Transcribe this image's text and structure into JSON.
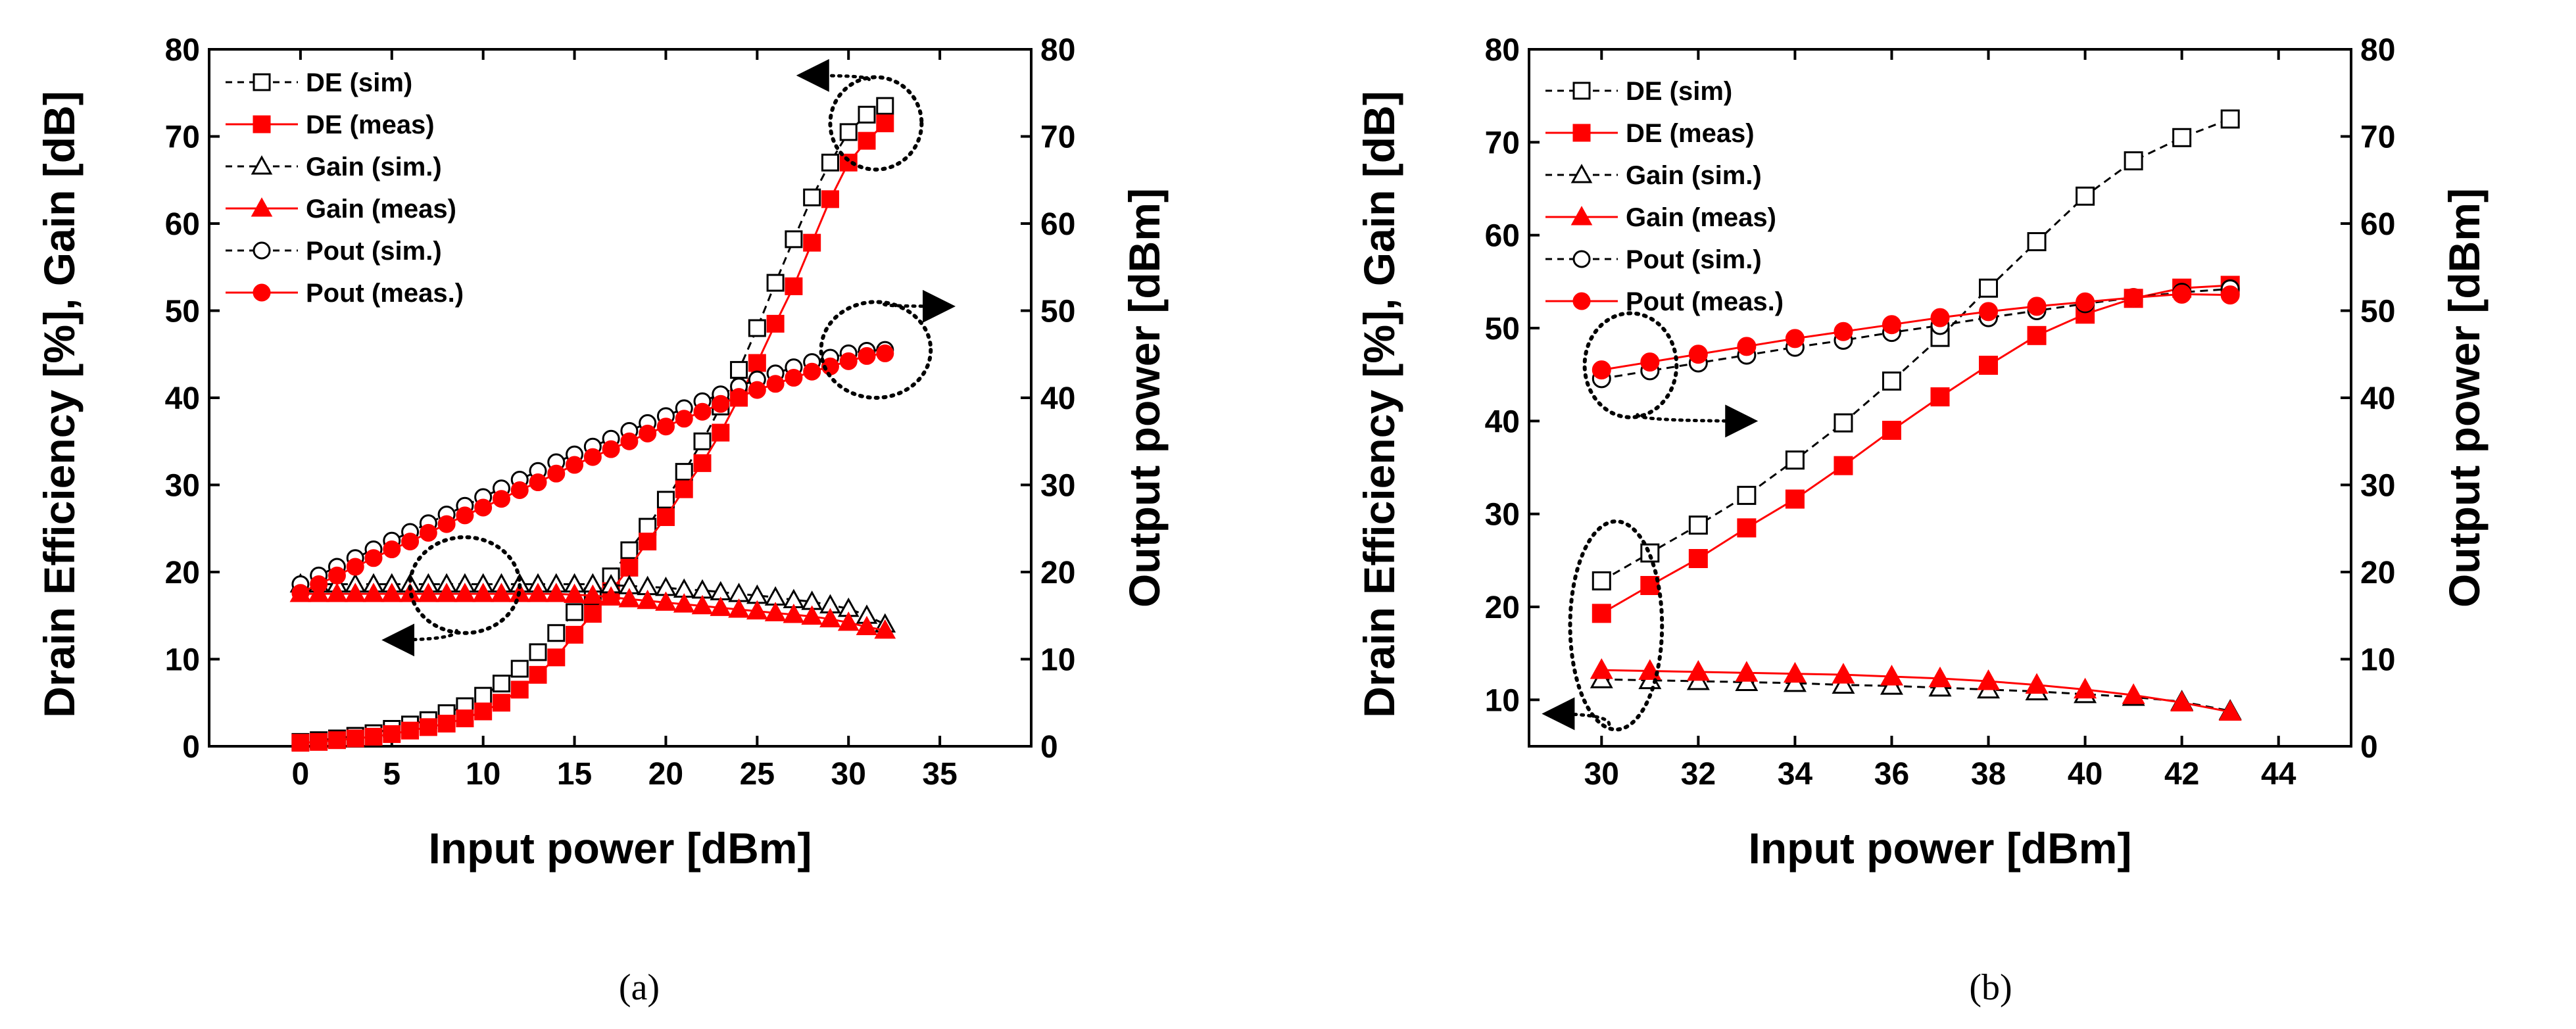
{
  "chart_data": [
    {
      "type": "line",
      "panel": "a",
      "caption": "(a)",
      "xlabel": "Input power [dBm]",
      "ylabel": "Drain Efficiency [%], Gain [dB]",
      "y2label": "Output power [dBm]",
      "xlim": [
        -5,
        40
      ],
      "ylim": [
        0,
        80
      ],
      "y2lim": [
        0,
        80
      ],
      "xticks": [
        0,
        5,
        10,
        15,
        20,
        25,
        30,
        35
      ],
      "yticks": [
        0,
        10,
        20,
        30,
        40,
        50,
        60,
        70,
        80
      ],
      "y2ticks": [
        0,
        10,
        20,
        30,
        40,
        50,
        60,
        70,
        80
      ],
      "legend_position": "top-left",
      "series": [
        {
          "name": "DE (sim)",
          "axis": "left",
          "marker": "square",
          "filled": false,
          "color": "#000000",
          "dashed": true,
          "x": [
            0,
            1,
            2,
            3,
            4,
            5,
            6,
            7,
            8,
            9,
            10,
            11,
            12,
            13,
            14,
            15,
            16,
            17,
            18,
            19,
            20,
            21,
            22,
            23,
            24,
            25,
            26,
            27,
            28,
            29,
            30,
            31,
            32
          ],
          "y": [
            0.5,
            0.7,
            0.9,
            1.2,
            1.5,
            2.0,
            2.5,
            3.0,
            3.8,
            4.6,
            5.8,
            7.2,
            8.9,
            10.8,
            13.0,
            15.4,
            17.2,
            19.5,
            22.5,
            25.2,
            28.3,
            31.5,
            35.0,
            39.0,
            43.2,
            48.0,
            53.2,
            58.2,
            63.0,
            67.0,
            70.5,
            72.5,
            73.5
          ]
        },
        {
          "name": "DE (meas)",
          "axis": "left",
          "marker": "square",
          "filled": true,
          "color": "#ff0000",
          "dashed": false,
          "x": [
            0,
            1,
            2,
            3,
            4,
            5,
            6,
            7,
            8,
            9,
            10,
            11,
            12,
            13,
            14,
            15,
            16,
            17,
            18,
            19,
            20,
            21,
            22,
            23,
            24,
            25,
            26,
            27,
            28,
            29,
            30,
            31,
            32
          ],
          "y": [
            0.4,
            0.5,
            0.7,
            0.9,
            1.1,
            1.4,
            1.8,
            2.2,
            2.6,
            3.2,
            4.0,
            5.0,
            6.5,
            8.2,
            10.2,
            12.8,
            15.2,
            17.8,
            20.5,
            23.5,
            26.3,
            29.5,
            32.5,
            36.0,
            40.0,
            44.0,
            48.5,
            52.8,
            57.8,
            62.8,
            67.0,
            69.5,
            71.5
          ]
        },
        {
          "name": "Gain (sim.)",
          "axis": "left",
          "marker": "triangle",
          "filled": false,
          "color": "#000000",
          "dashed": true,
          "x": [
            0,
            1,
            2,
            3,
            4,
            5,
            6,
            7,
            8,
            9,
            10,
            11,
            12,
            13,
            14,
            15,
            16,
            17,
            18,
            19,
            20,
            21,
            22,
            23,
            24,
            25,
            26,
            27,
            28,
            29,
            30,
            31,
            32
          ],
          "y": [
            18.6,
            18.6,
            18.6,
            18.6,
            18.6,
            18.6,
            18.6,
            18.6,
            18.6,
            18.6,
            18.6,
            18.6,
            18.6,
            18.6,
            18.6,
            18.6,
            18.6,
            18.5,
            18.4,
            18.3,
            18.2,
            18.0,
            17.9,
            17.7,
            17.5,
            17.3,
            17.1,
            16.8,
            16.6,
            16.2,
            15.8,
            15.0,
            14.0
          ]
        },
        {
          "name": "Gain (meas)",
          "axis": "left",
          "marker": "triangle",
          "filled": true,
          "color": "#ff0000",
          "dashed": false,
          "x": [
            0,
            1,
            2,
            3,
            4,
            5,
            6,
            7,
            8,
            9,
            10,
            11,
            12,
            13,
            14,
            15,
            16,
            17,
            18,
            19,
            20,
            21,
            22,
            23,
            24,
            25,
            26,
            27,
            28,
            29,
            30,
            31,
            32
          ],
          "y": [
            17.5,
            17.5,
            17.5,
            17.5,
            17.5,
            17.5,
            17.5,
            17.5,
            17.5,
            17.5,
            17.5,
            17.5,
            17.5,
            17.5,
            17.5,
            17.4,
            17.3,
            17.1,
            16.9,
            16.7,
            16.5,
            16.3,
            16.1,
            15.9,
            15.7,
            15.5,
            15.3,
            15.1,
            14.9,
            14.6,
            14.2,
            13.7,
            13.3
          ]
        },
        {
          "name": "Pout (sim.)",
          "axis": "right",
          "marker": "circle",
          "filled": false,
          "color": "#000000",
          "dashed": true,
          "x": [
            0,
            1,
            2,
            3,
            4,
            5,
            6,
            7,
            8,
            9,
            10,
            11,
            12,
            13,
            14,
            15,
            16,
            17,
            18,
            19,
            20,
            21,
            22,
            23,
            24,
            25,
            26,
            27,
            28,
            29,
            30,
            31,
            32
          ],
          "y": [
            18.6,
            19.6,
            20.6,
            21.6,
            22.6,
            23.6,
            24.6,
            25.6,
            26.6,
            27.6,
            28.6,
            29.6,
            30.6,
            31.6,
            32.6,
            33.5,
            34.4,
            35.3,
            36.2,
            37.1,
            37.9,
            38.8,
            39.6,
            40.4,
            41.3,
            42.1,
            42.8,
            43.5,
            44.1,
            44.6,
            45.1,
            45.4,
            45.5
          ]
        },
        {
          "name": "Pout (meas.)",
          "axis": "right",
          "marker": "circle",
          "filled": true,
          "color": "#ff0000",
          "dashed": false,
          "x": [
            0,
            1,
            2,
            3,
            4,
            5,
            6,
            7,
            8,
            9,
            10,
            11,
            12,
            13,
            14,
            15,
            16,
            17,
            18,
            19,
            20,
            21,
            22,
            23,
            24,
            25,
            26,
            27,
            28,
            29,
            30,
            31,
            32
          ],
          "y": [
            17.6,
            18.6,
            19.6,
            20.6,
            21.6,
            22.6,
            23.5,
            24.5,
            25.5,
            26.5,
            27.4,
            28.4,
            29.4,
            30.3,
            31.3,
            32.3,
            33.2,
            34.1,
            35.0,
            35.9,
            36.7,
            37.6,
            38.4,
            39.3,
            40.1,
            40.9,
            41.6,
            42.3,
            43.0,
            43.6,
            44.2,
            44.8,
            45.1
          ]
        }
      ],
      "annotations": [
        {
          "kind": "ellipse",
          "cx": 31.5,
          "cy": 71.5,
          "rx": 2.5,
          "ry": 5.3,
          "arrow_to_x": 27.5,
          "arrow_to_y": 77,
          "direction": "left"
        },
        {
          "kind": "ellipse",
          "cx": 31.5,
          "cy": 45.5,
          "rx": 3.0,
          "ry": 5.5,
          "arrow_to_x": 35.5,
          "arrow_to_y": 50.5,
          "direction": "right"
        },
        {
          "kind": "ellipse",
          "cx": 9.0,
          "cy": 18.5,
          "rx": 3.0,
          "ry": 5.5,
          "arrow_to_x": 4.8,
          "arrow_to_y": 12.2,
          "direction": "left"
        }
      ]
    },
    {
      "type": "line",
      "panel": "b",
      "caption": "(b)",
      "xlabel": "Input power [dBm]",
      "ylabel": "Drain Efficiency [%], Gain [dB]",
      "y2label": "Output power [dBm]",
      "xlim": [
        28.5,
        45.5
      ],
      "ylim": [
        5,
        80
      ],
      "y2lim": [
        0,
        80
      ],
      "xticks": [
        30,
        32,
        34,
        36,
        38,
        40,
        42,
        44
      ],
      "yticks": [
        10,
        20,
        30,
        40,
        50,
        60,
        70,
        80
      ],
      "y2ticks": [
        0,
        10,
        20,
        30,
        40,
        50,
        60,
        70,
        80
      ],
      "legend_position": "top-left",
      "series": [
        {
          "name": "DE (sim)",
          "axis": "left",
          "marker": "square",
          "filled": false,
          "color": "#000000",
          "dashed": true,
          "x": [
            30,
            31,
            32,
            33,
            34,
            35,
            36,
            37,
            38,
            39,
            40,
            41,
            42,
            43
          ],
          "y": [
            22.8,
            25.8,
            28.8,
            32.0,
            35.8,
            39.8,
            44.3,
            49.0,
            54.3,
            59.3,
            64.2,
            68.0,
            70.5,
            72.5
          ]
        },
        {
          "name": "DE (meas)",
          "axis": "left",
          "marker": "square",
          "filled": true,
          "color": "#ff0000",
          "dashed": false,
          "x": [
            30,
            31,
            32,
            33,
            34,
            35,
            36,
            37,
            38,
            39,
            40,
            41,
            42,
            43
          ],
          "y": [
            19.3,
            22.3,
            25.2,
            28.5,
            31.6,
            35.2,
            39.0,
            42.6,
            46.0,
            49.2,
            51.5,
            53.2,
            54.3,
            54.6
          ]
        },
        {
          "name": "Gain (sim.)",
          "axis": "left",
          "marker": "triangle",
          "filled": false,
          "color": "#000000",
          "dashed": true,
          "x": [
            30,
            31,
            32,
            33,
            34,
            35,
            36,
            37,
            38,
            39,
            40,
            41,
            42,
            43
          ],
          "y": [
            12.2,
            12.1,
            12.0,
            11.9,
            11.8,
            11.6,
            11.5,
            11.3,
            11.1,
            10.9,
            10.6,
            10.3,
            9.8,
            8.8
          ]
        },
        {
          "name": "Gain (meas)",
          "axis": "left",
          "marker": "triangle",
          "filled": true,
          "color": "#ff0000",
          "dashed": false,
          "x": [
            30,
            31,
            32,
            33,
            34,
            35,
            36,
            37,
            38,
            39,
            40,
            41,
            42,
            43
          ],
          "y": [
            13.2,
            13.1,
            13.0,
            12.9,
            12.8,
            12.7,
            12.5,
            12.3,
            12.0,
            11.6,
            11.1,
            10.5,
            9.7,
            8.7
          ]
        },
        {
          "name": "Pout (sim.)",
          "axis": "right",
          "marker": "circle",
          "filled": false,
          "color": "#000000",
          "dashed": true,
          "x": [
            30,
            31,
            32,
            33,
            34,
            35,
            36,
            37,
            38,
            39,
            40,
            41,
            42,
            43
          ],
          "y": [
            42.2,
            43.1,
            44.0,
            44.9,
            45.8,
            46.6,
            47.5,
            48.3,
            49.2,
            50.0,
            50.8,
            51.5,
            52.1,
            52.5
          ]
        },
        {
          "name": "Pout (meas.)",
          "axis": "right",
          "marker": "circle",
          "filled": true,
          "color": "#ff0000",
          "dashed": false,
          "x": [
            30,
            31,
            32,
            33,
            34,
            35,
            36,
            37,
            38,
            39,
            40,
            41,
            42,
            43
          ],
          "y": [
            43.2,
            44.1,
            45.0,
            45.9,
            46.8,
            47.6,
            48.4,
            49.2,
            49.9,
            50.5,
            51.0,
            51.5,
            51.9,
            51.8
          ]
        }
      ],
      "annotations": [
        {
          "kind": "ellipse",
          "cx": 30.6,
          "cy": 46.0,
          "rx": 0.95,
          "ry": 5.6,
          "arrow_to_x": 33.1,
          "arrow_to_y": 40.0,
          "direction": "right"
        },
        {
          "kind": "ellipse",
          "cx": 30.3,
          "cy": 18.0,
          "rx": 0.95,
          "ry": 11.2,
          "arrow_to_x": 28.9,
          "arrow_to_y": 8.5,
          "direction": "left"
        }
      ]
    }
  ]
}
